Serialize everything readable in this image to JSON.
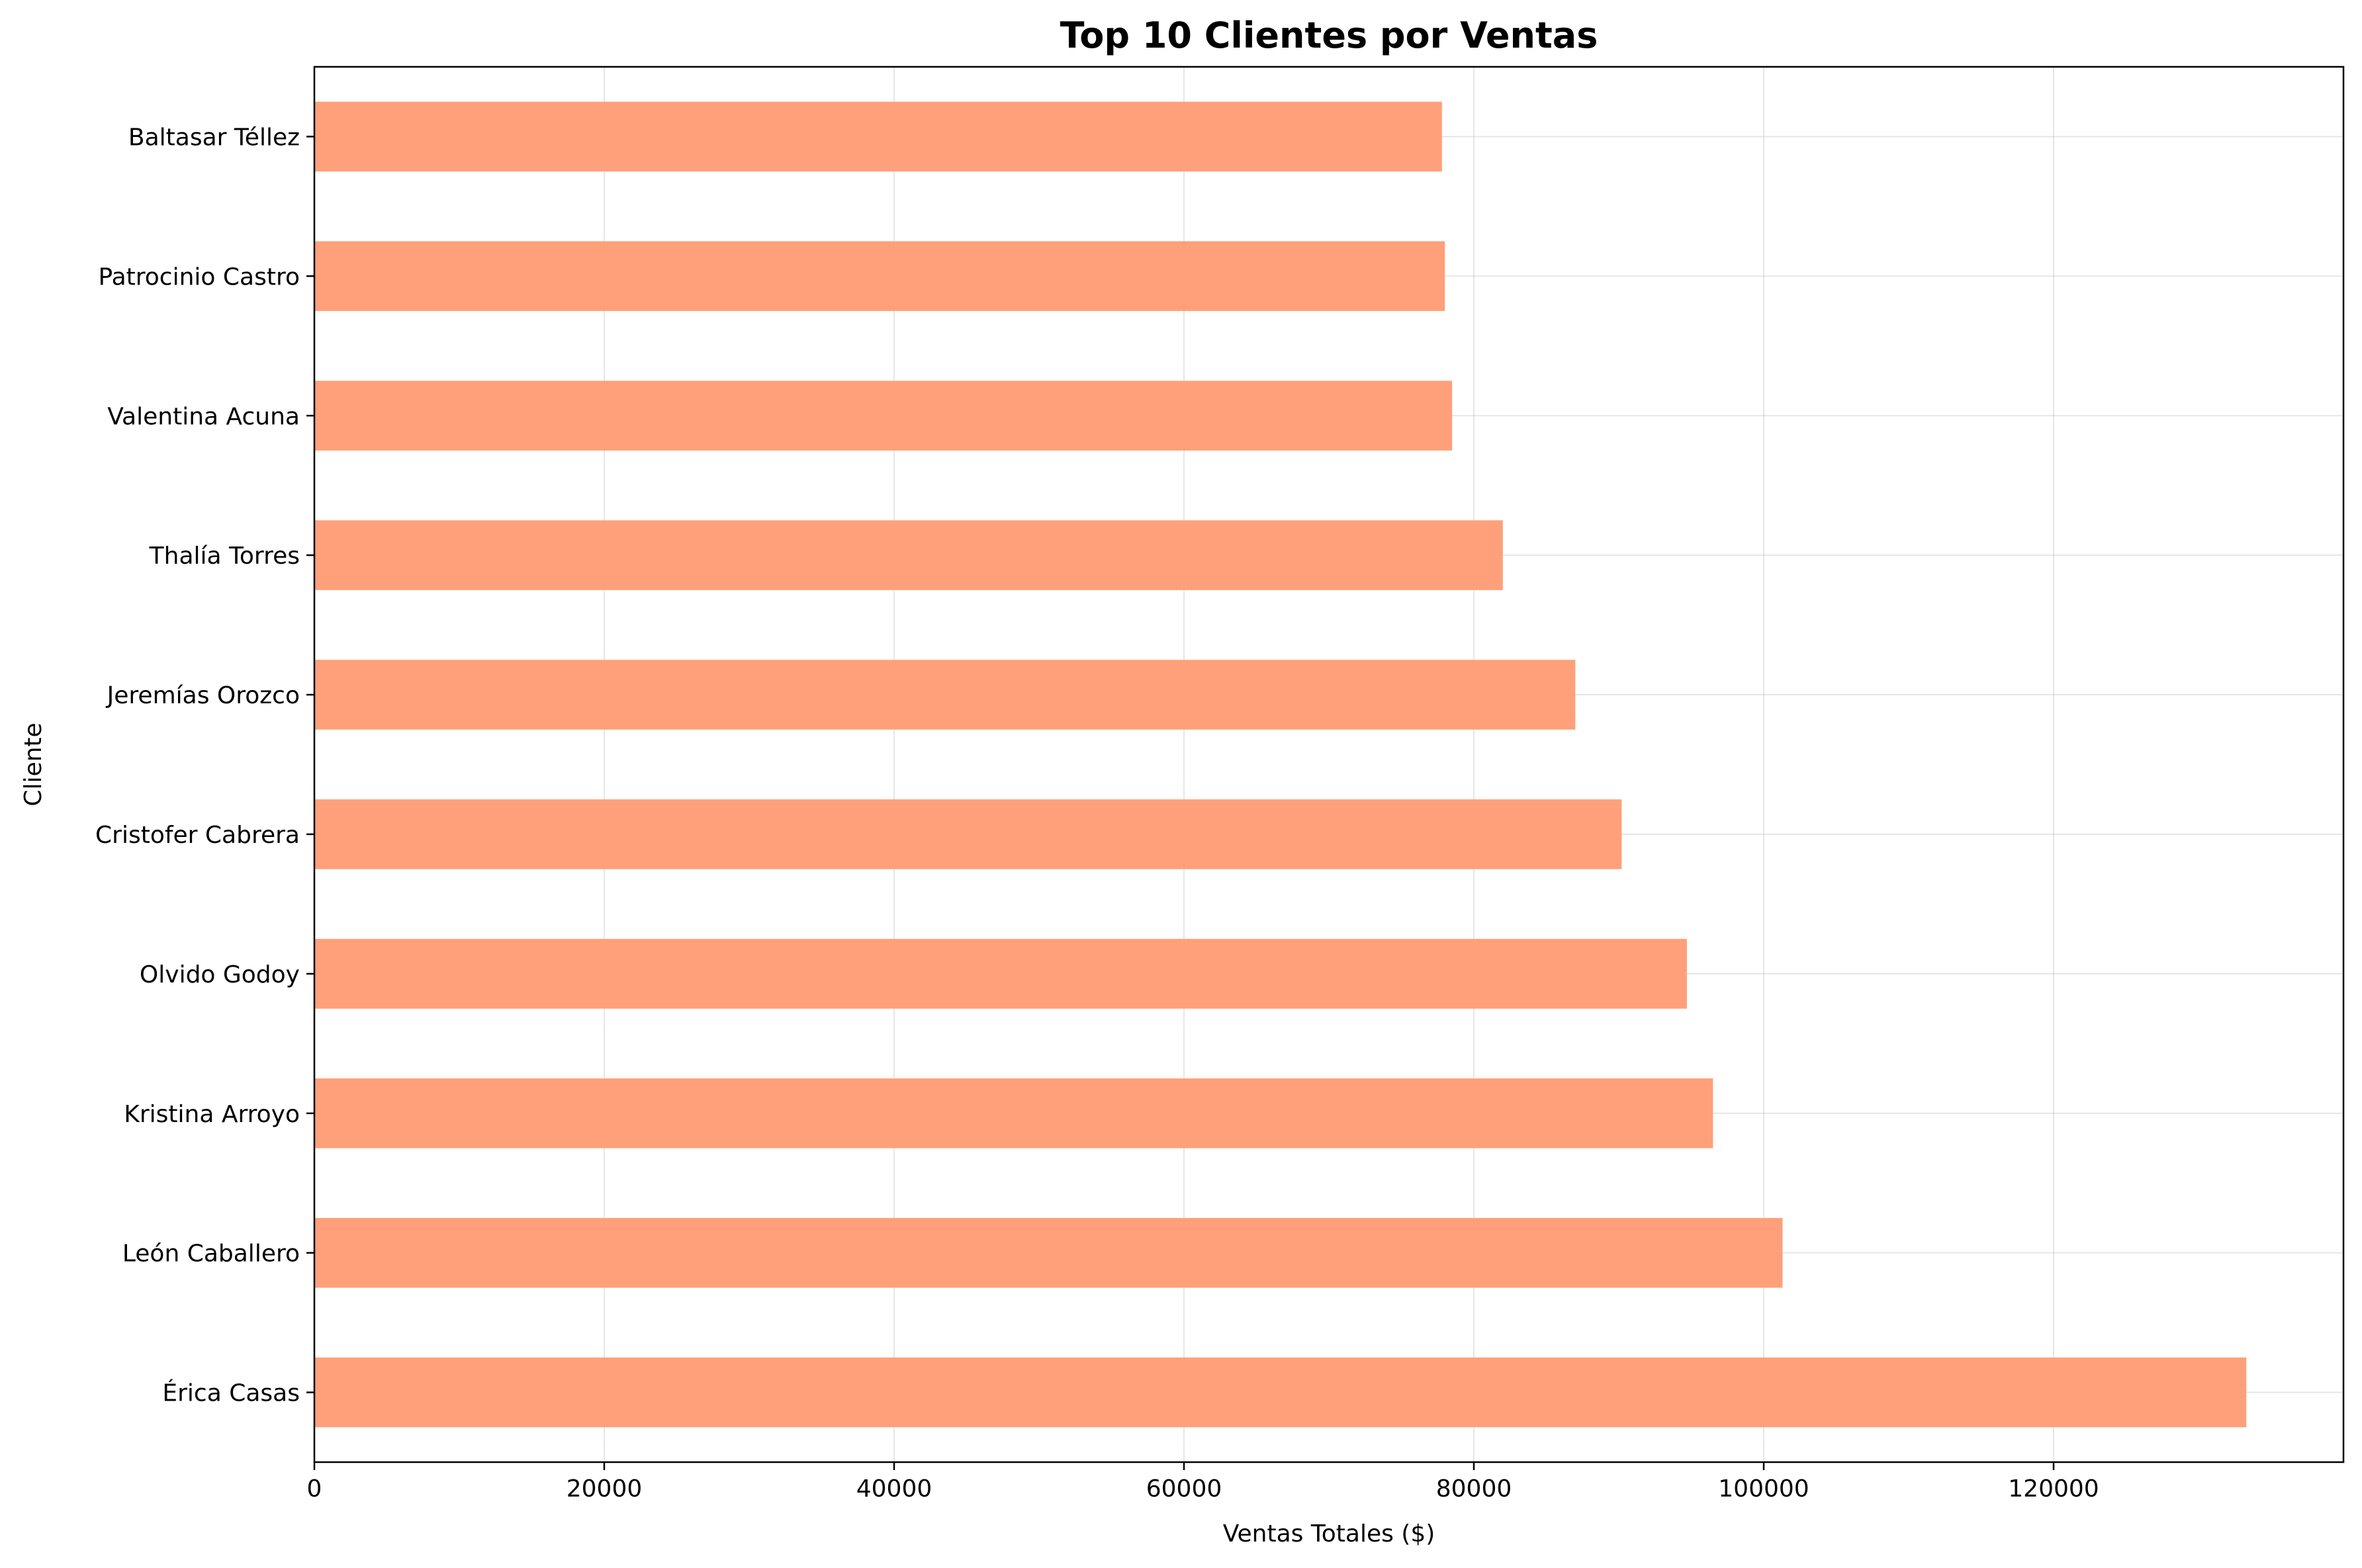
{
  "chart_data": {
    "type": "bar",
    "orientation": "horizontal",
    "title": "Top 10 Clientes por Ventas",
    "xlabel": "Ventas Totales ($)",
    "ylabel": "Cliente",
    "categories": [
      "Érica Casas",
      "León Caballero",
      "Kristina Arroyo",
      "Olvido Godoy",
      "Cristofer Cabrera",
      "Jeremías Orozco",
      "Thalía Torres",
      "Valentina Acuna",
      "Patrocinio Castro",
      "Baltasar Téllez"
    ],
    "values": [
      133300,
      101300,
      96500,
      94700,
      90200,
      87000,
      82000,
      78500,
      78000,
      77800
    ],
    "xlim": [
      0,
      140000
    ],
    "xticks": [
      0,
      20000,
      40000,
      60000,
      80000,
      100000,
      120000
    ],
    "xtick_labels": [
      "0",
      "20000",
      "40000",
      "60000",
      "80000",
      "100000",
      "120000"
    ],
    "bar_color": "#FFA07A",
    "grid": true
  }
}
